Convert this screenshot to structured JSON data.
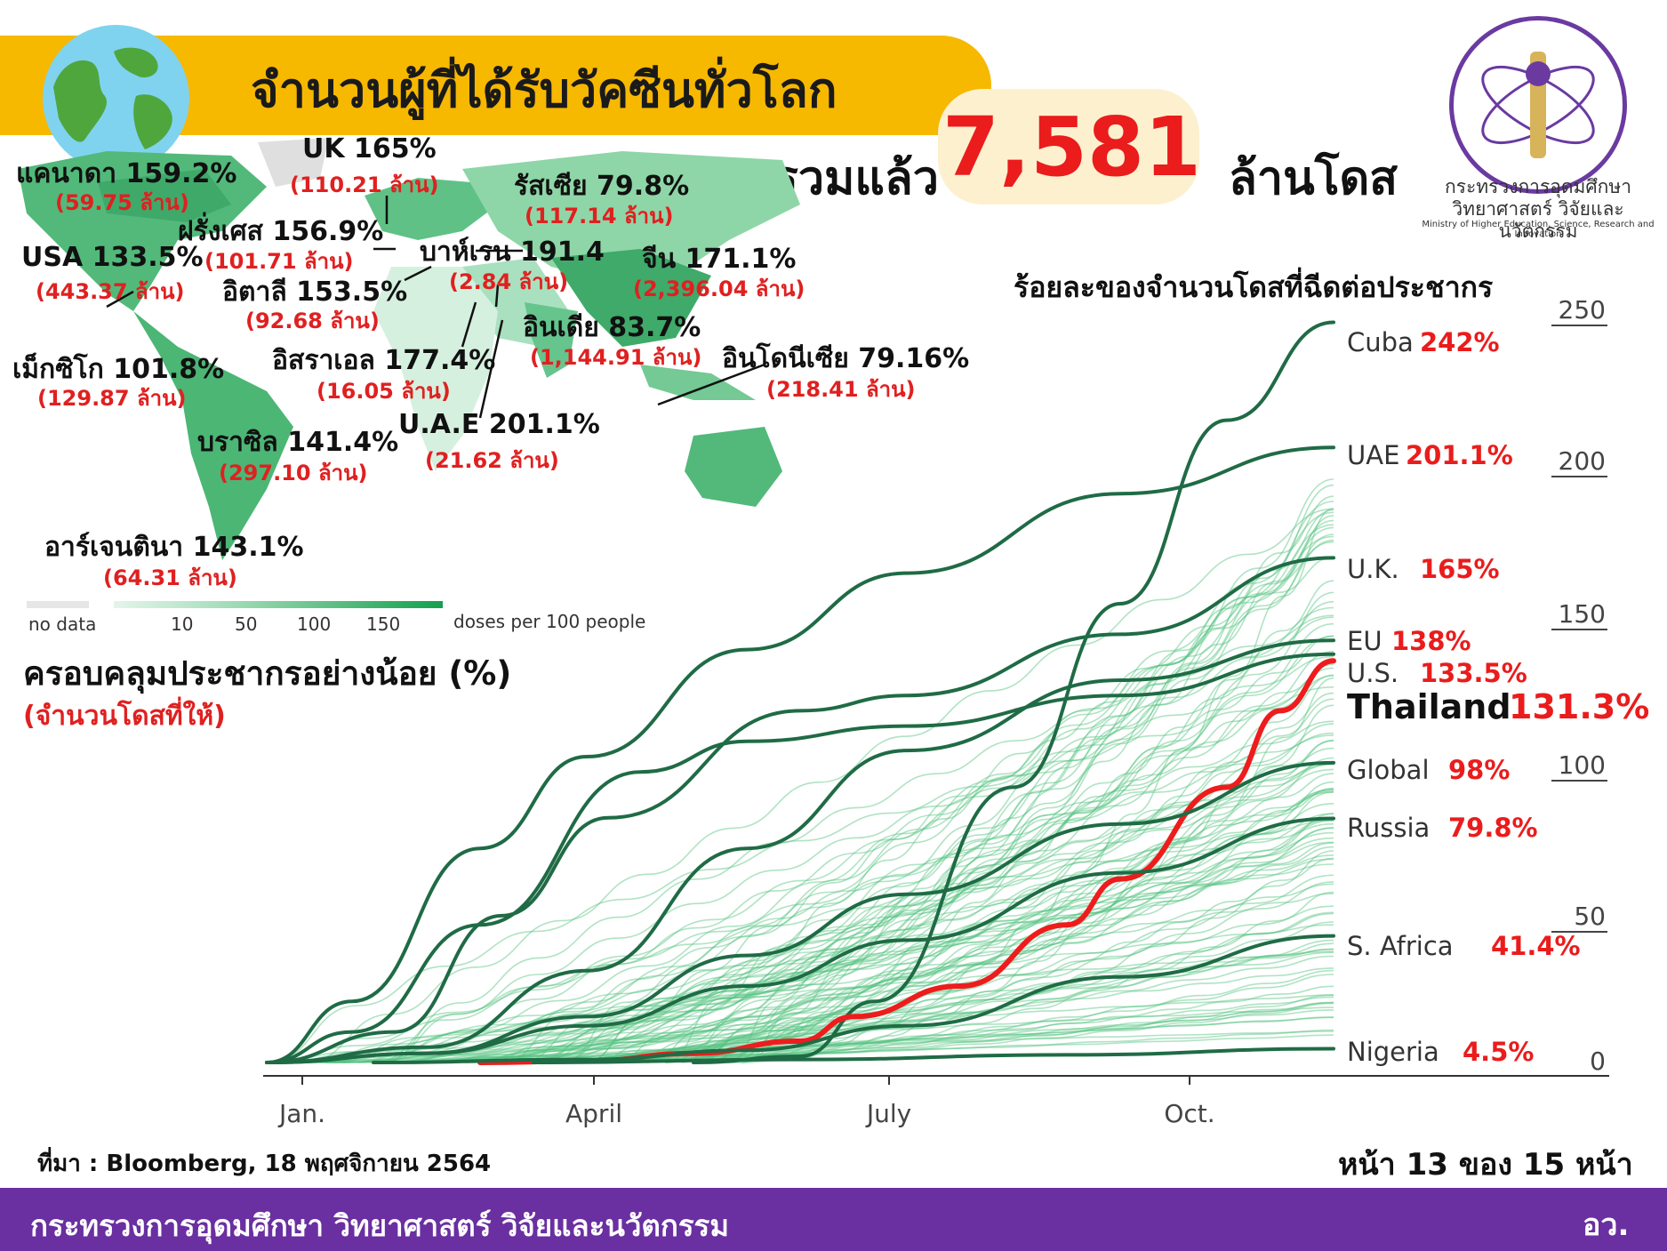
{
  "header": {
    "title": "จำนวนผู้ที่ได้รับวัคซีนทั่วโลก",
    "total_label": "รวมแล้ว",
    "total_value": "7,581",
    "total_unit": "ล้านโดส"
  },
  "logo": {
    "name_th_line1": "กระทรวงการอุดมศึกษา",
    "name_th_line2": "วิทยาศาสตร์ วิจัยและนวัตกรรม",
    "name_en": "Ministry of Higher Education, Science, Research and Innovation"
  },
  "map": {
    "countries": [
      {
        "name": "แคนาดา 159.2%",
        "doses": "(59.75 ล้าน)"
      },
      {
        "name": "UK 165%",
        "doses": "(110.21 ล้าน)"
      },
      {
        "name": "รัสเซีย 79.8%",
        "doses": "(117.14 ล้าน)"
      },
      {
        "name": "ฝรั่งเศส 156.9%",
        "doses": "(101.71 ล้าน)"
      },
      {
        "name": "USA 133.5%",
        "doses": "(443.37 ล้าน)"
      },
      {
        "name": "บาห์เรน 191.4",
        "doses": "(2.84 ล้าน)"
      },
      {
        "name": "จีน 171.1%",
        "doses": "(2,396.04 ล้าน)"
      },
      {
        "name": "อิตาลี 153.5%",
        "doses": "(92.68 ล้าน)"
      },
      {
        "name": "อินเดีย 83.7%",
        "doses": "(1,144.91 ล้าน)"
      },
      {
        "name": "เม็กซิโก 101.8%",
        "doses": "(129.87 ล้าน)"
      },
      {
        "name": "อิสราเอล 177.4%",
        "doses": "(16.05 ล้าน)"
      },
      {
        "name": "อินโดนีเซีย 79.16%",
        "doses": "(218.41 ล้าน)"
      },
      {
        "name": "U.A.E 201.1%",
        "doses": "(21.62 ล้าน)"
      },
      {
        "name": "บราซิล 141.4%",
        "doses": "(297.10 ล้าน)"
      },
      {
        "name": "อาร์เจนตินา 143.1%",
        "doses": "(64.31 ล้าน)"
      }
    ],
    "legend": {
      "no_data": "no data",
      "ticks": [
        "10",
        "50",
        "100",
        "150"
      ],
      "unit": "doses per 100 people",
      "colors": [
        "#e6e6e6",
        "#e3f5ea",
        "#c0e8cf",
        "#98d8b0",
        "#6cc58e",
        "#3fb26d",
        "#14a050"
      ]
    },
    "coverage_title": "ครอบคลุมประชากรอย่างน้อย (%)",
    "coverage_sub": "(จำนวนโดสที่ให้)"
  },
  "chart_data": {
    "type": "line",
    "title": "ร้อยละของจำนวนโดสที่ฉีดต่อประชากร",
    "x_ticks": [
      "Jan.",
      "April",
      "July",
      "Oct."
    ],
    "y_ticks": [
      "250",
      "200",
      "150",
      "100",
      "50",
      "0"
    ],
    "ylim": [
      0,
      250
    ],
    "series": [
      {
        "name": "Cuba",
        "label": "242%",
        "final": 242,
        "color": "#1f6b45",
        "x": [
          0.4,
          0.5,
          0.57,
          0.7,
          0.8,
          0.9,
          1.0
        ],
        "y": [
          0,
          2,
          20,
          90,
          150,
          210,
          242
        ]
      },
      {
        "name": "UAE",
        "label": "201.1%",
        "final": 201.1,
        "color": "#1f6b45",
        "x": [
          0,
          0.08,
          0.2,
          0.3,
          0.45,
          0.6,
          0.8,
          1.0
        ],
        "y": [
          0,
          20,
          70,
          100,
          135,
          160,
          186,
          201.1
        ]
      },
      {
        "name": "U.K.",
        "label": "165%",
        "final": 165,
        "color": "#1f6b45",
        "x": [
          0,
          0.12,
          0.22,
          0.32,
          0.5,
          0.6,
          0.8,
          1.0
        ],
        "y": [
          0,
          10,
          48,
          80,
          115,
          120,
          140,
          165
        ]
      },
      {
        "name": "EU",
        "label": "138%",
        "final": 138,
        "color": "#1f6b45",
        "x": [
          0,
          0.15,
          0.3,
          0.45,
          0.6,
          0.8,
          1.0
        ],
        "y": [
          0,
          5,
          30,
          70,
          102,
          125,
          138
        ]
      },
      {
        "name": "U.S.",
        "label": "133.5%",
        "final": 133.5,
        "color": "#1f6b45",
        "x": [
          0,
          0.08,
          0.2,
          0.35,
          0.45,
          0.6,
          0.8,
          1.0
        ],
        "y": [
          0,
          10,
          45,
          95,
          105,
          110,
          120,
          133.5
        ]
      },
      {
        "name": "Thailand",
        "label": "131.3%",
        "final": 131.3,
        "color": "#ee1c1c",
        "x": [
          0.2,
          0.3,
          0.4,
          0.5,
          0.55,
          0.65,
          0.75,
          0.8,
          0.9,
          0.95,
          1.0
        ],
        "y": [
          0,
          0.5,
          3,
          7,
          15,
          25,
          45,
          60,
          90,
          115,
          131.3
        ]
      },
      {
        "name": "Global",
        "label": "98%",
        "final": 98,
        "color": "#1f6b45",
        "x": [
          0,
          0.15,
          0.3,
          0.45,
          0.6,
          0.8,
          1.0
        ],
        "y": [
          0,
          3,
          15,
          35,
          55,
          78,
          98
        ]
      },
      {
        "name": "Russia",
        "label": "79.8%",
        "final": 79.8,
        "color": "#1f6b45",
        "x": [
          0,
          0.15,
          0.3,
          0.45,
          0.6,
          0.8,
          1.0
        ],
        "y": [
          0,
          3,
          12,
          25,
          40,
          62,
          79.8
        ]
      },
      {
        "name": "S. Africa",
        "label": "41.4%",
        "final": 41.4,
        "color": "#1f6b45",
        "x": [
          0.1,
          0.3,
          0.45,
          0.6,
          0.8,
          1.0
        ],
        "y": [
          0,
          1,
          4,
          12,
          28,
          41.4
        ]
      },
      {
        "name": "Nigeria",
        "label": "4.5%",
        "final": 4.5,
        "color": "#1f6b45",
        "x": [
          0.25,
          0.5,
          0.75,
          1.0
        ],
        "y": [
          0,
          1,
          2.5,
          4.5
        ]
      }
    ],
    "background_series_color": "#4fc07c"
  },
  "footer": {
    "source": "ที่มา : Bloomberg, 18 พฤศจิกายน 2564",
    "page": "หน้า 13 ของ 15 หน้า",
    "ministry": "กระทรวงการอุดมศึกษา วิทยาศาสตร์ วิจัยและนวัตกรรม",
    "abbr": "อว."
  }
}
